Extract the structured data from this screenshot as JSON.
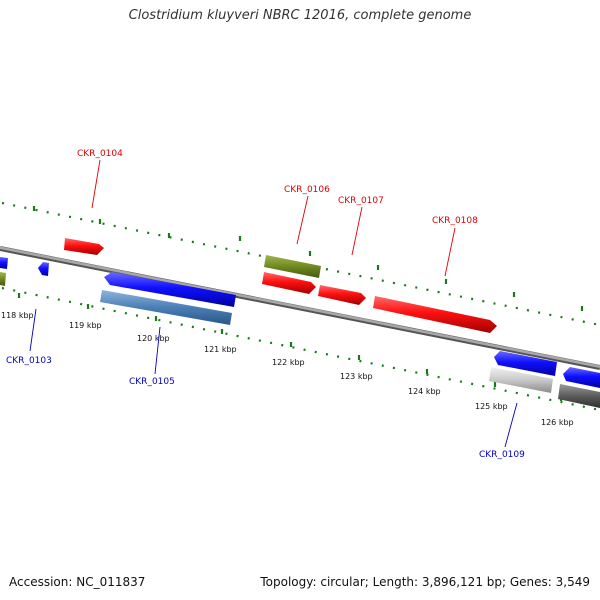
{
  "title": "Clostridium kluyveri NBRC 12016, complete genome",
  "footer": {
    "accession": "Accession: NC_011837",
    "summary": "Topology: circular; Length: 3,896,121 bp; Genes: 3,549"
  },
  "colors": {
    "forward_label": "#e00000",
    "reverse_label": "#0000cc",
    "tick_marks": "#1a7a1a",
    "backbone": "#8a8a8a"
  },
  "ticks": [
    {
      "label": "118 kbp"
    },
    {
      "label": "119 kbp"
    },
    {
      "label": "120 kbp"
    },
    {
      "label": "121 kbp"
    },
    {
      "label": "122 kbp"
    },
    {
      "label": "123 kbp"
    },
    {
      "label": "124 kbp"
    },
    {
      "label": "125 kbp"
    },
    {
      "label": "126 kbp"
    }
  ],
  "gene_labels": [
    {
      "text": "CKR_0104",
      "strand": "forward"
    },
    {
      "text": "CKR_0106",
      "strand": "forward"
    },
    {
      "text": "CKR_0107",
      "strand": "forward"
    },
    {
      "text": "CKR_0108",
      "strand": "forward"
    },
    {
      "text": "CKR_0103",
      "strand": "reverse"
    },
    {
      "text": "CKR_0105",
      "strand": "reverse"
    },
    {
      "text": "CKR_0109",
      "strand": "reverse"
    }
  ]
}
